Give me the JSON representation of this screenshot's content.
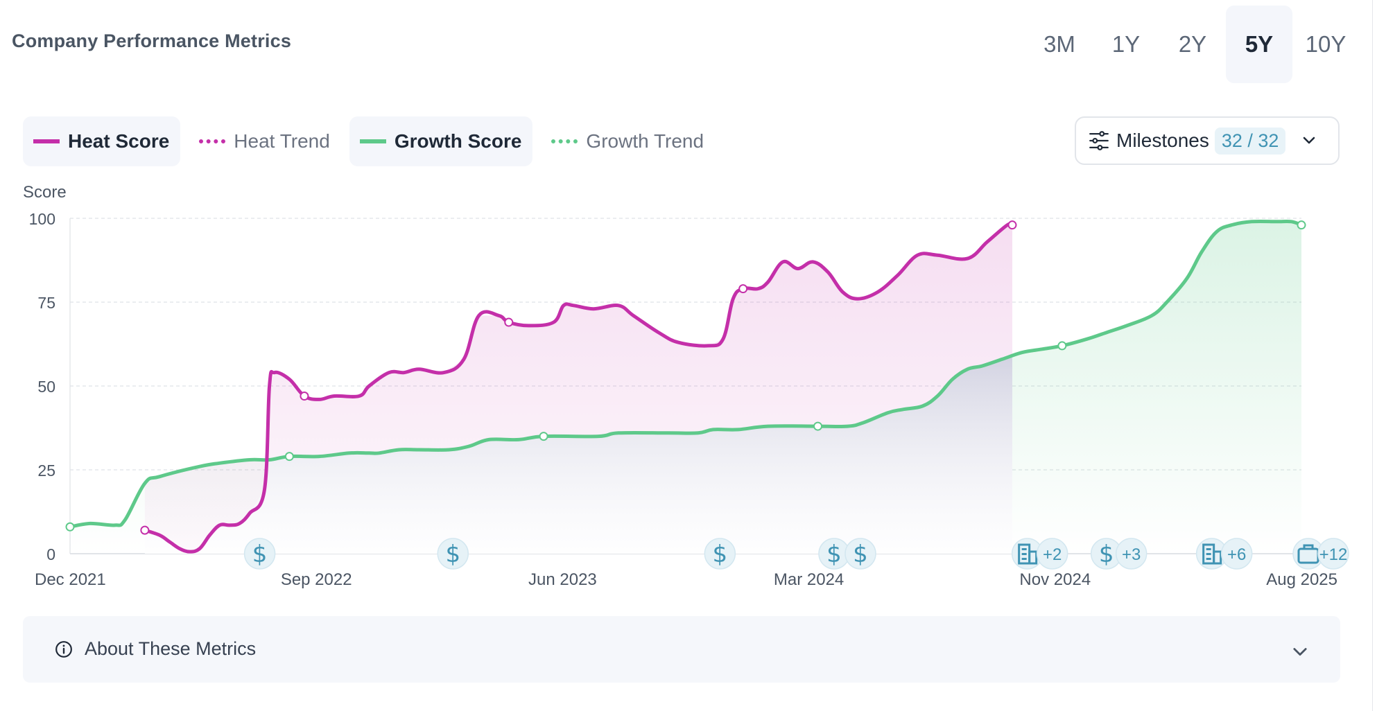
{
  "header": {
    "title": "Company Performance Metrics",
    "ranges": [
      "3M",
      "1Y",
      "2Y",
      "5Y",
      "10Y"
    ],
    "active_range": "5Y"
  },
  "legend": {
    "items": [
      {
        "label": "Heat Score",
        "color": "#c42fa9",
        "style": "solid",
        "active": true
      },
      {
        "label": "Heat Trend",
        "color": "#c42fa9",
        "style": "dotted",
        "active": false
      },
      {
        "label": "Growth Score",
        "color": "#5ec98a",
        "style": "solid",
        "active": true
      },
      {
        "label": "Growth Trend",
        "color": "#5ec98a",
        "style": "dotted",
        "active": false
      }
    ]
  },
  "milestones": {
    "label": "Milestones",
    "count": "32 / 32",
    "icon": "sliders-icon"
  },
  "about": {
    "label": "About These Metrics",
    "icon": "info-icon"
  },
  "colors": {
    "heat": "#c42fa9",
    "growth": "#5ec98a",
    "accent": "#3f93b3"
  },
  "chart_data": {
    "type": "line",
    "ylabel": "Score",
    "ylim": [
      0,
      100
    ],
    "yticks": [
      0,
      25,
      50,
      75,
      100
    ],
    "xlim": [
      "2021-12",
      "2025-08"
    ],
    "xticks": [
      "Dec 2021",
      "Sep 2022",
      "Jun 2023",
      "Mar 2024",
      "Nov 2024",
      "Aug 2025"
    ],
    "grid": true,
    "series": [
      {
        "name": "Heat Score",
        "color": "#c42fa9",
        "points": [
          [
            0.75,
            7
          ],
          [
            0.9,
            5.5
          ],
          [
            1.0,
            3.5
          ],
          [
            1.1,
            1.5
          ],
          [
            1.2,
            0.6
          ],
          [
            1.3,
            1.5
          ],
          [
            1.4,
            5.5
          ],
          [
            1.5,
            8.5
          ],
          [
            1.6,
            8.5
          ],
          [
            1.7,
            9
          ],
          [
            1.8,
            12
          ],
          [
            1.95,
            19
          ],
          [
            2.0,
            50
          ],
          [
            2.05,
            54
          ],
          [
            2.2,
            52
          ],
          [
            2.35,
            47
          ],
          [
            2.5,
            46
          ],
          [
            2.65,
            47
          ],
          [
            2.9,
            47
          ],
          [
            3.0,
            50
          ],
          [
            3.2,
            54
          ],
          [
            3.35,
            54
          ],
          [
            3.5,
            55
          ],
          [
            3.75,
            54
          ],
          [
            3.95,
            58
          ],
          [
            4.1,
            71
          ],
          [
            4.3,
            71
          ],
          [
            4.4,
            69
          ],
          [
            4.6,
            68
          ],
          [
            4.85,
            69
          ],
          [
            4.95,
            74
          ],
          [
            5.05,
            74
          ],
          [
            5.25,
            73
          ],
          [
            5.5,
            74
          ],
          [
            5.65,
            71
          ],
          [
            5.9,
            66
          ],
          [
            6.1,
            63
          ],
          [
            6.4,
            62
          ],
          [
            6.55,
            64
          ],
          [
            6.65,
            76
          ],
          [
            6.75,
            79
          ],
          [
            6.9,
            79
          ],
          [
            7.0,
            81
          ],
          [
            7.15,
            87
          ],
          [
            7.3,
            85
          ],
          [
            7.45,
            87
          ],
          [
            7.6,
            84
          ],
          [
            7.75,
            78
          ],
          [
            7.9,
            76
          ],
          [
            8.1,
            78
          ],
          [
            8.3,
            83
          ],
          [
            8.5,
            89
          ],
          [
            8.7,
            89
          ],
          [
            9.0,
            88
          ],
          [
            9.2,
            93
          ],
          [
            9.4,
            98
          ],
          [
            9.45,
            98
          ]
        ],
        "markers": [
          [
            0.75,
            7
          ],
          [
            2.35,
            47
          ],
          [
            4.4,
            69
          ],
          [
            6.75,
            79
          ],
          [
            9.45,
            98
          ]
        ]
      },
      {
        "name": "Growth Score",
        "color": "#5ec98a",
        "points": [
          [
            0,
            8
          ],
          [
            0.2,
            9
          ],
          [
            0.45,
            8.5
          ],
          [
            0.55,
            10
          ],
          [
            0.75,
            21
          ],
          [
            0.9,
            23
          ],
          [
            1.3,
            26
          ],
          [
            1.5,
            27
          ],
          [
            1.8,
            28
          ],
          [
            2.0,
            28
          ],
          [
            2.2,
            29
          ],
          [
            2.5,
            29
          ],
          [
            2.8,
            30
          ],
          [
            3.0,
            30
          ],
          [
            3.1,
            30
          ],
          [
            3.3,
            31
          ],
          [
            3.5,
            31
          ],
          [
            3.8,
            31
          ],
          [
            4.0,
            32
          ],
          [
            4.2,
            34
          ],
          [
            4.5,
            34
          ],
          [
            4.75,
            35
          ],
          [
            5.3,
            35
          ],
          [
            5.5,
            36
          ],
          [
            6.0,
            36
          ],
          [
            6.3,
            36
          ],
          [
            6.45,
            37
          ],
          [
            6.7,
            37
          ],
          [
            7.0,
            38
          ],
          [
            7.5,
            38
          ],
          [
            7.8,
            38
          ],
          [
            7.95,
            39
          ],
          [
            8.2,
            42
          ],
          [
            8.35,
            43
          ],
          [
            8.55,
            44
          ],
          [
            8.7,
            47
          ],
          [
            8.85,
            52
          ],
          [
            9.0,
            55
          ],
          [
            9.15,
            56
          ],
          [
            9.35,
            58
          ],
          [
            9.55,
            60
          ],
          [
            9.75,
            61
          ],
          [
            9.95,
            62
          ],
          [
            10.2,
            64
          ],
          [
            10.4,
            66
          ],
          [
            10.6,
            68
          ],
          [
            10.85,
            71
          ],
          [
            11.0,
            75
          ],
          [
            11.2,
            82
          ],
          [
            11.35,
            90
          ],
          [
            11.5,
            96
          ],
          [
            11.65,
            98
          ],
          [
            11.85,
            99
          ],
          [
            12.1,
            99
          ],
          [
            12.25,
            99
          ],
          [
            12.35,
            98
          ]
        ],
        "markers": [
          [
            0,
            8
          ],
          [
            2.2,
            29
          ],
          [
            4.75,
            35
          ],
          [
            7.5,
            38
          ],
          [
            9.95,
            62
          ],
          [
            12.35,
            98
          ]
        ]
      }
    ],
    "milestone_events": [
      {
        "x": 1.08,
        "icon": "dollar-icon",
        "extra": ""
      },
      {
        "x": 2.18,
        "icon": "dollar-icon",
        "extra": ""
      },
      {
        "x": 3.7,
        "icon": "dollar-icon",
        "extra": ""
      },
      {
        "x": 4.35,
        "icon": "dollar-icon",
        "extra": ""
      },
      {
        "x": 4.5,
        "icon": "dollar-icon",
        "extra": ""
      },
      {
        "x": 5.45,
        "icon": "building-icon",
        "extra": "+2"
      },
      {
        "x": 5.9,
        "icon": "dollar-icon",
        "extra": "+3"
      },
      {
        "x": 6.5,
        "icon": "building-icon",
        "extra": "+6"
      },
      {
        "x": 7.05,
        "icon": "briefcase-icon",
        "extra": "+12"
      }
    ]
  }
}
